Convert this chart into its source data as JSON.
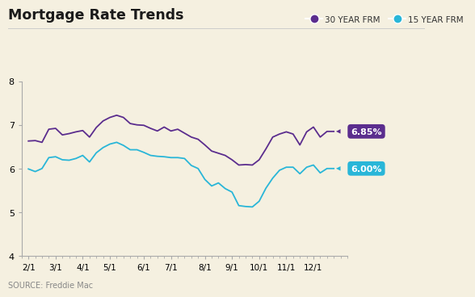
{
  "title": "Mortgage Rate Trends",
  "source": "SOURCE: Freddie Mac",
  "background_color": "#f5f0e0",
  "plot_bg_color": "#f5f0e0",
  "ylim": [
    4,
    8
  ],
  "yticks": [
    4,
    5,
    6,
    7,
    8
  ],
  "xtick_labels": [
    "2/1",
    "3/1",
    "4/1",
    "5/1",
    "6/1",
    "7/1",
    "8/1",
    "9/1",
    "10/1",
    "11/1",
    "12/1"
  ],
  "line_30yr_color": "#5b2d8e",
  "line_15yr_color": "#29b6d8",
  "label_30yr_color": "#5b2d8e",
  "label_15yr_color": "#29b6d8",
  "legend_30yr": "30 YEAR FRM",
  "legend_15yr": "15 YEAR FRM",
  "end_label_30yr": "6.85%",
  "end_label_15yr": "6.00%",
  "x_30yr": [
    1,
    2,
    3,
    4,
    5,
    6,
    7,
    8,
    9,
    10,
    11,
    12,
    13,
    14,
    15,
    16,
    17,
    18,
    19,
    20,
    21,
    22,
    23,
    24,
    25,
    26,
    27,
    28,
    29,
    30,
    31,
    32,
    33,
    34,
    35,
    36,
    37,
    38,
    39,
    40,
    41,
    42,
    43,
    44,
    45,
    46
  ],
  "y_30yr": [
    6.63,
    6.64,
    6.6,
    6.9,
    6.92,
    6.77,
    6.8,
    6.84,
    6.87,
    6.72,
    6.94,
    7.09,
    7.17,
    7.22,
    7.17,
    7.03,
    7.0,
    6.99,
    6.92,
    6.86,
    6.95,
    6.86,
    6.9,
    6.81,
    6.72,
    6.67,
    6.54,
    6.4,
    6.35,
    6.3,
    6.2,
    6.08,
    6.09,
    6.08,
    6.2,
    6.45,
    6.72,
    6.79,
    6.84,
    6.79,
    6.54,
    6.84,
    6.95,
    6.72,
    6.85,
    6.85
  ],
  "x_15yr": [
    1,
    2,
    3,
    4,
    5,
    6,
    7,
    8,
    9,
    10,
    11,
    12,
    13,
    14,
    15,
    16,
    17,
    18,
    19,
    20,
    21,
    22,
    23,
    24,
    25,
    26,
    27,
    28,
    29,
    30,
    31,
    32,
    33,
    34,
    35,
    36,
    37,
    38,
    39,
    40,
    41,
    42,
    43,
    44,
    45,
    46
  ],
  "y_15yr": [
    5.99,
    5.93,
    6.0,
    6.25,
    6.27,
    6.2,
    6.19,
    6.23,
    6.3,
    6.15,
    6.36,
    6.48,
    6.56,
    6.6,
    6.53,
    6.43,
    6.43,
    6.37,
    6.3,
    6.28,
    6.27,
    6.25,
    6.25,
    6.23,
    6.07,
    6.0,
    5.75,
    5.6,
    5.67,
    5.54,
    5.46,
    5.15,
    5.13,
    5.12,
    5.25,
    5.55,
    5.78,
    5.96,
    6.03,
    6.03,
    5.88,
    6.03,
    6.08,
    5.9,
    6.0,
    6.0
  ],
  "month_x_positions": [
    1,
    5,
    9,
    13,
    18,
    22,
    27,
    31,
    35,
    39,
    43
  ],
  "xlim": [
    0,
    48
  ]
}
